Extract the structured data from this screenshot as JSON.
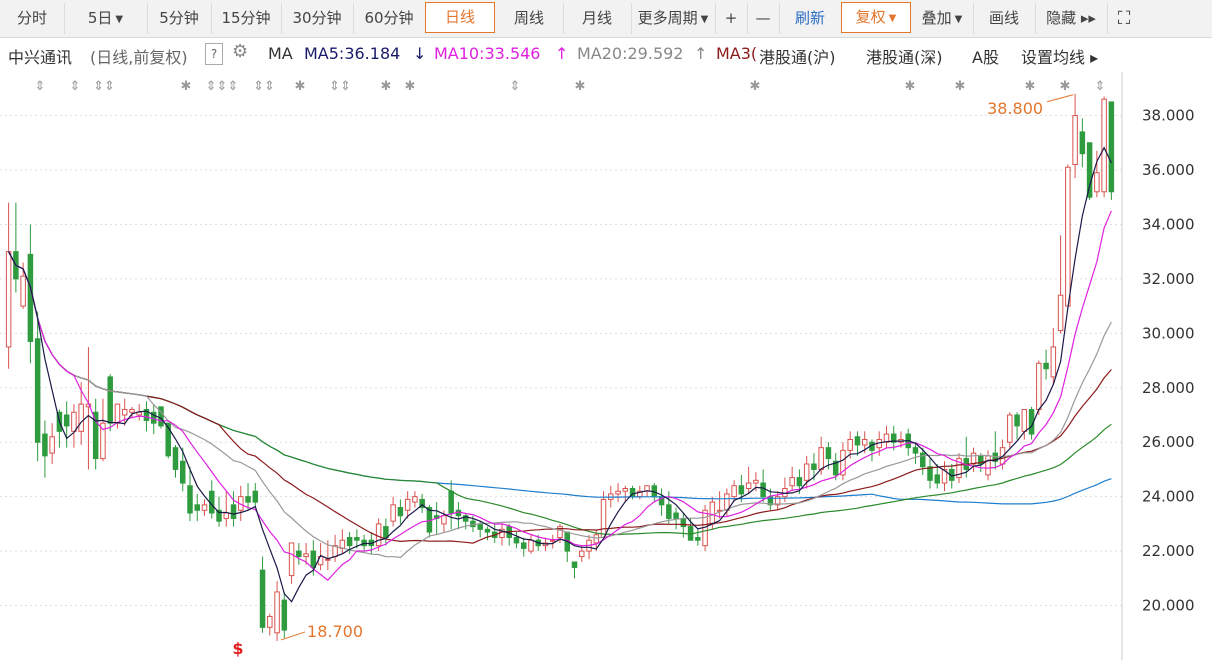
{
  "toolbar": {
    "items": [
      {
        "label": "分时",
        "caret": false
      },
      {
        "label": "5日",
        "caret": true
      },
      {
        "label": "5分钟",
        "caret": false
      },
      {
        "label": "15分钟",
        "caret": false
      },
      {
        "label": "30分钟",
        "caret": false
      },
      {
        "label": "60分钟",
        "caret": false
      },
      {
        "label": "日线",
        "caret": false,
        "active": true
      },
      {
        "label": "周线",
        "caret": false
      },
      {
        "label": "月线",
        "caret": false
      },
      {
        "label": "更多周期",
        "caret": true
      },
      {
        "label": "+",
        "caret": false
      },
      {
        "label": "—",
        "caret": false
      },
      {
        "label": "刷新",
        "caret": false
      },
      {
        "label": "复权",
        "caret": true,
        "active": true
      },
      {
        "label": "叠加",
        "caret": true
      },
      {
        "label": "画线",
        "caret": false
      },
      {
        "label": "隐藏 ▸▸",
        "caret": false
      }
    ],
    "fullscreen_icon": "expand-icon"
  },
  "infobar": {
    "stock_name": "中兴通讯",
    "mode": "(日线,前复权)",
    "help": "?",
    "ma_label": "MA",
    "ma5": "MA5:36.184",
    "ma5_dir": "↓",
    "ma10": "MA10:33.546",
    "ma10_dir": "↑",
    "ma20": "MA20:29.592",
    "ma20_dir": "↑",
    "ma30": "MA3(",
    "hk_sh": "港股通(沪)",
    "hk_sz": "港股通(深)",
    "a_share": "A股",
    "ma_settings": "设置均线 ▸"
  },
  "chart_data": {
    "type": "candlestick",
    "y_ticks": [
      "38.000",
      "36.000",
      "34.000",
      "32.000",
      "30.000",
      "28.000",
      "26.000",
      "24.000",
      "22.000",
      "20.000"
    ],
    "ylim": [
      18.0,
      39.6
    ],
    "high_label": "38.800",
    "low_label": "18.700",
    "colors": {
      "up": "#d9534f",
      "down": "#2e9b3e",
      "ma5": "#1a1a4a",
      "ma10": "#e020e0",
      "ma20": "#999999",
      "ma30": "#8b1a1a",
      "ma60": "#2a8a2a",
      "ma120": "#1f7fce"
    },
    "candles": [
      [
        29.5,
        33.0,
        28.7,
        34.8
      ],
      [
        33.0,
        32.0,
        31.5,
        34.8
      ],
      [
        31.0,
        32.1,
        30.9,
        32.6
      ],
      [
        32.9,
        29.7,
        28.9,
        34.0
      ],
      [
        29.8,
        26.0,
        25.3,
        30.8
      ],
      [
        26.3,
        25.5,
        24.7,
        26.8
      ],
      [
        25.6,
        26.2,
        25.2,
        26.7
      ],
      [
        27.1,
        26.4,
        25.8,
        27.2
      ],
      [
        27.0,
        26.6,
        25.8,
        27.5
      ],
      [
        26.4,
        27.1,
        25.8,
        27.4
      ],
      [
        26.4,
        27.4,
        25.9,
        28.2
      ],
      [
        27.3,
        27.4,
        25.0,
        29.5
      ],
      [
        27.1,
        25.4,
        25.0,
        27.6
      ],
      [
        25.4,
        26.7,
        25.3,
        27.6
      ],
      [
        28.4,
        26.7,
        26.4,
        28.5
      ],
      [
        26.7,
        27.4,
        26.5,
        27.4
      ],
      [
        27.0,
        27.2,
        26.6,
        27.6
      ],
      [
        27.1,
        27.2,
        26.9,
        27.3
      ],
      [
        27.0,
        27.1,
        26.8,
        27.4
      ],
      [
        27.2,
        26.8,
        26.4,
        27.5
      ],
      [
        27.1,
        26.7,
        26.3,
        27.4
      ],
      [
        27.3,
        26.6,
        26.5,
        27.3
      ],
      [
        26.7,
        25.5,
        25.4,
        26.7
      ],
      [
        25.8,
        25.0,
        24.7,
        25.9
      ],
      [
        25.3,
        24.5,
        24.2,
        25.8
      ],
      [
        24.4,
        23.4,
        23.1,
        25.1
      ],
      [
        23.7,
        23.5,
        23.1,
        24.1
      ],
      [
        23.5,
        23.7,
        23.3,
        23.9
      ],
      [
        24.2,
        23.4,
        23.2,
        24.6
      ],
      [
        23.5,
        23.1,
        22.9,
        24.0
      ],
      [
        23.2,
        23.4,
        22.9,
        24.2
      ],
      [
        23.7,
        23.2,
        22.9,
        24.2
      ],
      [
        23.5,
        24.0,
        23.1,
        24.4
      ],
      [
        24.0,
        23.8,
        23.5,
        24.5
      ],
      [
        24.2,
        23.8,
        23.6,
        24.5
      ],
      [
        21.3,
        19.2,
        19.0,
        21.8
      ],
      [
        19.2,
        19.6,
        18.9,
        19.7
      ],
      [
        19.0,
        20.5,
        18.7,
        20.9
      ],
      [
        20.2,
        19.1,
        18.8,
        20.5
      ],
      [
        21.1,
        22.3,
        20.8,
        22.3
      ],
      [
        22.0,
        21.8,
        21.5,
        22.3
      ],
      [
        21.8,
        21.9,
        21.5,
        22.3
      ],
      [
        22.0,
        21.4,
        21.1,
        22.4
      ],
      [
        21.5,
        21.8,
        21.3,
        22.3
      ],
      [
        21.7,
        21.7,
        21.3,
        22.4
      ],
      [
        21.8,
        22.2,
        21.6,
        22.6
      ],
      [
        22.1,
        22.4,
        21.9,
        22.8
      ],
      [
        22.5,
        22.2,
        21.9,
        22.7
      ],
      [
        22.5,
        22.4,
        22.1,
        22.8
      ],
      [
        22.4,
        22.2,
        22.0,
        22.6
      ],
      [
        22.4,
        22.2,
        21.9,
        22.7
      ],
      [
        22.2,
        23.0,
        22.0,
        23.2
      ],
      [
        22.9,
        22.5,
        22.2,
        23.2
      ],
      [
        23.1,
        23.7,
        22.9,
        24.0
      ],
      [
        23.6,
        23.3,
        23.0,
        23.9
      ],
      [
        23.5,
        23.9,
        23.2,
        24.2
      ],
      [
        23.8,
        24.0,
        23.6,
        24.2
      ],
      [
        23.9,
        23.6,
        23.4,
        24.1
      ],
      [
        23.6,
        22.7,
        22.5,
        23.7
      ],
      [
        23.3,
        23.2,
        22.6,
        23.8
      ],
      [
        23.0,
        23.3,
        22.7,
        23.5
      ],
      [
        24.2,
        23.4,
        22.8,
        24.6
      ],
      [
        23.5,
        23.3,
        22.8,
        23.8
      ],
      [
        23.3,
        23.1,
        22.8,
        23.4
      ],
      [
        23.1,
        22.9,
        22.7,
        23.3
      ],
      [
        23.0,
        22.8,
        22.5,
        23.1
      ],
      [
        22.8,
        22.7,
        22.4,
        22.9
      ],
      [
        22.7,
        22.5,
        22.3,
        23.0
      ],
      [
        22.5,
        22.8,
        22.2,
        23.0
      ],
      [
        22.9,
        22.5,
        22.2,
        23.0
      ],
      [
        22.5,
        22.3,
        22.1,
        22.7
      ],
      [
        22.3,
        22.1,
        21.8,
        22.5
      ],
      [
        22.0,
        22.4,
        21.9,
        22.6
      ],
      [
        22.4,
        22.2,
        22.0,
        22.6
      ],
      [
        22.2,
        22.3,
        22.0,
        22.5
      ],
      [
        22.4,
        22.4,
        22.1,
        22.6
      ],
      [
        22.5,
        22.9,
        22.3,
        23.0
      ],
      [
        22.7,
        22.0,
        21.6,
        22.7
      ],
      [
        21.6,
        21.4,
        21.0,
        21.6
      ],
      [
        21.8,
        22.0,
        21.6,
        22.2
      ],
      [
        22.0,
        22.4,
        21.7,
        22.6
      ],
      [
        22.3,
        22.6,
        22.0,
        22.8
      ],
      [
        22.5,
        23.9,
        22.5,
        24.2
      ],
      [
        23.9,
        24.1,
        23.6,
        24.4
      ],
      [
        24.1,
        24.2,
        23.8,
        24.5
      ],
      [
        24.2,
        24.3,
        23.8,
        24.4
      ],
      [
        24.3,
        24.0,
        23.9,
        24.4
      ],
      [
        24.0,
        24.2,
        23.9,
        24.4
      ],
      [
        24.2,
        24.4,
        24.0,
        24.4
      ],
      [
        24.4,
        24.0,
        23.8,
        24.5
      ],
      [
        24.0,
        23.7,
        23.3,
        24.3
      ],
      [
        23.7,
        23.2,
        23.0,
        24.2
      ],
      [
        23.4,
        23.2,
        22.8,
        23.6
      ],
      [
        23.2,
        22.9,
        22.5,
        23.4
      ],
      [
        22.9,
        22.4,
        22.4,
        23.2
      ],
      [
        22.5,
        22.4,
        22.2,
        22.8
      ],
      [
        22.2,
        23.5,
        22.0,
        23.7
      ],
      [
        23.0,
        23.8,
        22.8,
        24.0
      ],
      [
        23.5,
        23.5,
        23.2,
        24.2
      ],
      [
        23.5,
        24.1,
        23.3,
        24.3
      ],
      [
        24.0,
        24.4,
        23.8,
        24.6
      ],
      [
        24.4,
        24.1,
        23.8,
        24.8
      ],
      [
        24.3,
        24.5,
        24.1,
        25.1
      ],
      [
        24.5,
        24.6,
        24.2,
        24.9
      ],
      [
        24.5,
        24.0,
        23.8,
        25.0
      ],
      [
        24.0,
        23.7,
        23.5,
        24.3
      ],
      [
        23.7,
        24.0,
        23.5,
        24.2
      ],
      [
        24.0,
        24.3,
        23.8,
        24.7
      ],
      [
        24.4,
        24.7,
        24.2,
        25.1
      ],
      [
        24.7,
        24.4,
        24.1,
        25.0
      ],
      [
        24.6,
        25.2,
        24.3,
        25.5
      ],
      [
        25.2,
        25.0,
        24.6,
        25.6
      ],
      [
        25.0,
        25.8,
        24.8,
        26.2
      ],
      [
        25.8,
        25.4,
        25.0,
        26.0
      ],
      [
        25.3,
        24.8,
        24.6,
        25.6
      ],
      [
        24.8,
        25.7,
        24.6,
        26.0
      ],
      [
        25.7,
        26.1,
        25.4,
        26.4
      ],
      [
        26.2,
        25.9,
        25.5,
        26.4
      ],
      [
        25.9,
        26.1,
        25.6,
        26.4
      ],
      [
        26.0,
        25.7,
        25.3,
        26.1
      ],
      [
        25.8,
        26.1,
        25.5,
        26.4
      ],
      [
        26.0,
        26.3,
        25.8,
        26.6
      ],
      [
        26.3,
        26.0,
        25.7,
        26.6
      ],
      [
        26.0,
        26.1,
        25.8,
        26.4
      ],
      [
        26.3,
        25.8,
        25.5,
        26.5
      ],
      [
        25.8,
        25.6,
        25.2,
        26.0
      ],
      [
        25.6,
        25.1,
        24.8,
        25.8
      ],
      [
        25.1,
        24.6,
        24.3,
        25.4
      ],
      [
        24.8,
        24.5,
        24.3,
        25.2
      ],
      [
        24.5,
        25.0,
        24.2,
        25.3
      ],
      [
        25.0,
        24.6,
        24.3,
        25.2
      ],
      [
        24.7,
        25.4,
        24.5,
        25.6
      ],
      [
        25.4,
        25.0,
        24.7,
        26.2
      ],
      [
        25.2,
        25.6,
        24.9,
        25.8
      ],
      [
        25.5,
        25.2,
        24.9,
        25.6
      ],
      [
        24.8,
        25.5,
        24.6,
        25.7
      ],
      [
        25.6,
        25.3,
        25.0,
        26.4
      ],
      [
        25.2,
        25.8,
        25.0,
        26.1
      ],
      [
        26.0,
        27.0,
        25.8,
        27.1
      ],
      [
        27.0,
        26.6,
        26.1,
        27.1
      ],
      [
        26.4,
        27.2,
        26.1,
        27.2
      ],
      [
        27.2,
        26.3,
        26.1,
        27.3
      ],
      [
        27.2,
        28.9,
        27.0,
        29.0
      ],
      [
        28.9,
        28.7,
        28.3,
        29.4
      ],
      [
        28.4,
        29.5,
        28.1,
        30.2
      ],
      [
        30.1,
        31.4,
        30.0,
        33.6
      ],
      [
        31.0,
        36.1,
        31.0,
        36.2
      ],
      [
        36.2,
        38.0,
        35.7,
        38.8
      ],
      [
        37.4,
        36.6,
        36.1,
        37.9
      ],
      [
        37.0,
        35.0,
        34.9,
        37.0
      ],
      [
        35.2,
        35.9,
        35.0,
        36.7
      ],
      [
        35.2,
        38.6,
        35.0,
        38.7
      ],
      [
        38.5,
        35.2,
        34.9,
        38.5
      ]
    ]
  }
}
